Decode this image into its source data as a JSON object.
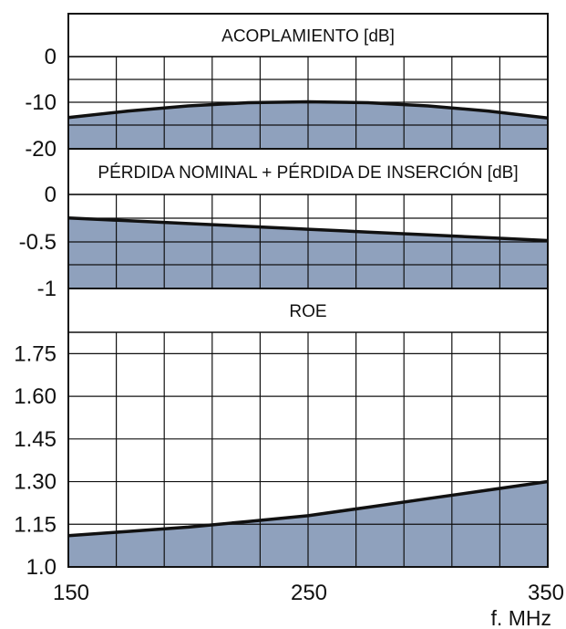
{
  "chart_data": [
    {
      "type": "area",
      "title": "ACOPLAMIENTO [dB]",
      "x": [
        150,
        175,
        200,
        225,
        250,
        275,
        300,
        325,
        350
      ],
      "y": [
        -13.2,
        -11.8,
        -10.7,
        -10.0,
        -9.8,
        -10.0,
        -10.7,
        -11.8,
        -13.3
      ],
      "xlim": [
        150,
        350
      ],
      "ylim": [
        -20,
        0
      ],
      "y_ticks": [
        "0",
        "-10",
        "-20"
      ],
      "grid": true,
      "fill_color": "#8fa1bd",
      "line_color": "#111111"
    },
    {
      "type": "area",
      "title": "PÉRDIDA NOMINAL + PÉRDIDA DE INSERCIÓN [dB]",
      "x": [
        150,
        175,
        200,
        225,
        250,
        275,
        300,
        325,
        350
      ],
      "y": [
        -0.25,
        -0.28,
        -0.31,
        -0.34,
        -0.37,
        -0.4,
        -0.43,
        -0.46,
        -0.49
      ],
      "xlim": [
        150,
        350
      ],
      "ylim": [
        -1,
        0
      ],
      "y_ticks": [
        "0",
        "-0.5",
        "-1"
      ],
      "grid": true,
      "fill_color": "#8fa1bd",
      "line_color": "#111111"
    },
    {
      "type": "area",
      "title": "ROE",
      "x": [
        150,
        175,
        200,
        225,
        250,
        275,
        300,
        325,
        350
      ],
      "y": [
        1.11,
        1.125,
        1.14,
        1.16,
        1.18,
        1.21,
        1.24,
        1.27,
        1.3
      ],
      "xlim": [
        150,
        350
      ],
      "ylim": [
        1.0,
        1.825
      ],
      "y_ticks": [
        "1.75",
        "1.60",
        "1.45",
        "1.30",
        "1.15",
        "1.0"
      ],
      "y_tick_values": [
        1.75,
        1.6,
        1.45,
        1.3,
        1.15,
        1.0
      ],
      "grid": true,
      "fill_color": "#8fa1bd",
      "line_color": "#111111"
    }
  ],
  "x_axis": {
    "tick_labels": [
      "150",
      "250",
      "350"
    ],
    "tick_values": [
      150,
      250,
      350
    ],
    "unit_label": "f. MHz"
  }
}
